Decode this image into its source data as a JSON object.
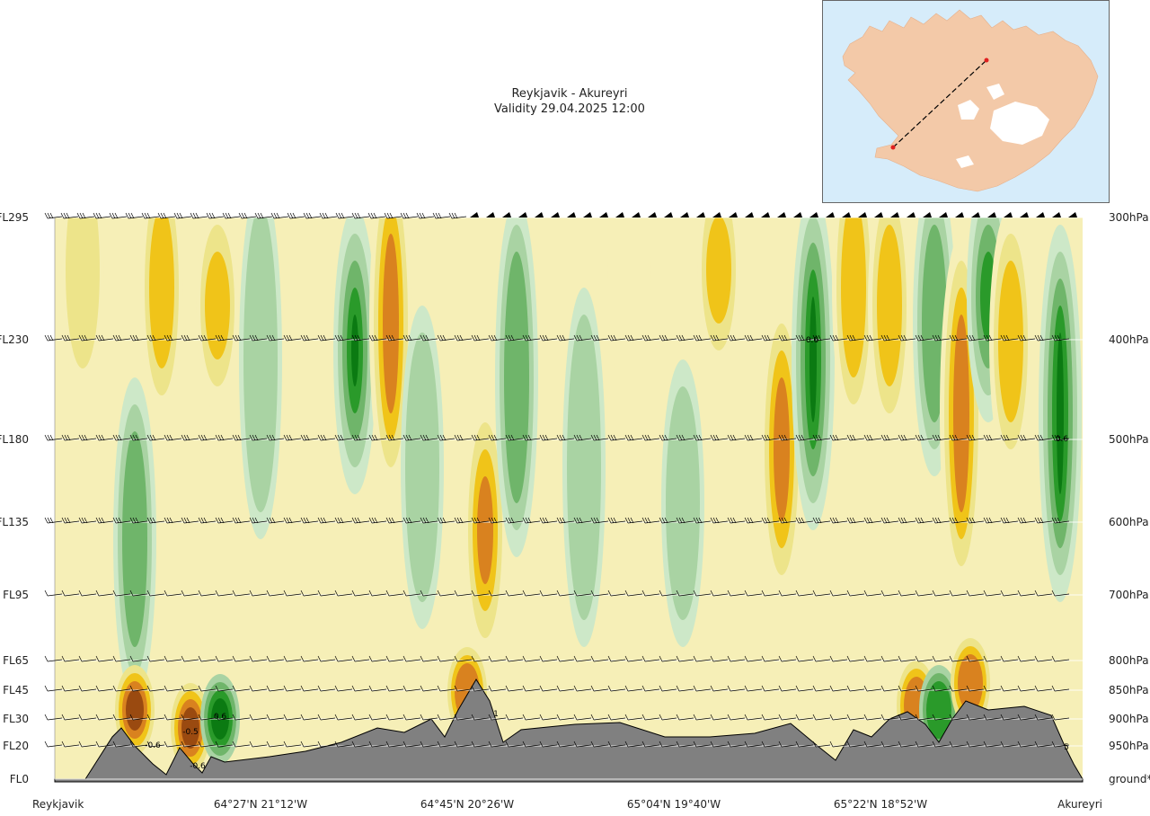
{
  "header": {
    "route": "Reykjavik - Akureyri",
    "validity": "Validity 29.04.2025 12:00"
  },
  "colors": {
    "background": "#ffffff",
    "terrain": "#808080",
    "sea": "#d6ecfa",
    "land": "#f3c9a8",
    "route_line": "#000000",
    "route_endpoints": "#e02020",
    "palette_descending": [
      "#9a4a10",
      "#d9821f",
      "#f0c419",
      "#ede48a",
      "#f6efb7",
      "#fbfbe8"
    ],
    "palette_ascending": [
      "#e2f2dc",
      "#cde8c8",
      "#a9d3a3",
      "#6fb56a",
      "#2a9a2a",
      "#0b7a12"
    ]
  },
  "chart_data": {
    "type": "heatmap",
    "title": "Reykjavik - Akureyri",
    "subtitle": "Validity 29.04.2025 12:00",
    "left_axis_ticks": [
      "FL295",
      "FL230",
      "FL180",
      "FL135",
      "FL95",
      "FL65",
      "FL45",
      "FL30",
      "FL20",
      "FL0"
    ],
    "right_axis_ticks": [
      "300hPa",
      "400hPa",
      "500hPa",
      "600hPa",
      "700hPa",
      "800hPa",
      "850hPa",
      "900hPa",
      "950hPa",
      "ground*"
    ],
    "x_ticks": [
      "Reykjavik",
      "64°27'N 21°12'W",
      "64°45'N 20°26'W",
      "65°04'N 19°40'W",
      "65°22'N 18°52'W",
      "Akureyri"
    ],
    "contour_labels": [
      "0.6",
      "0.6",
      "0.6",
      "-0.5",
      "-0.6",
      "1",
      "-0.6",
      "5"
    ],
    "grid": true,
    "wind_barbs": true,
    "terrain_profile": true
  },
  "map": {
    "icon": "iceland-map-icon",
    "route_from": "Reykjavik",
    "route_to": "Akureyri"
  }
}
